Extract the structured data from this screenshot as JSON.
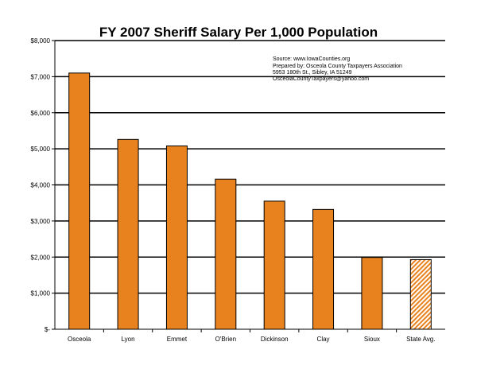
{
  "chart_data": {
    "type": "bar",
    "title": "FY 2007 Sheriff Salary Per 1,000 Population",
    "xlabel": "",
    "ylabel": "",
    "categories": [
      "Osceola",
      "Lyon",
      "Emmet",
      "O'Brien",
      "Dickinson",
      "Clay",
      "Sioux",
      "State Avg."
    ],
    "values": [
      7100,
      5260,
      5080,
      4160,
      3550,
      3320,
      1990,
      1930
    ],
    "y_tick_labels": [
      "$-",
      "$1,000",
      "$2,000",
      "$3,000",
      "$4,000",
      "$5,000",
      "$6,000",
      "$7,000",
      "$8,000"
    ],
    "ylim": [
      0,
      8000
    ],
    "grid": true,
    "colors": {
      "bar": "#E8821E",
      "bar_outline": "#000000",
      "highlight_hatch": "#E8821E",
      "gridline": "#000000"
    },
    "highlight_category": "State Avg.",
    "annotations": [
      "Source: www.IowaCounties.org",
      "Prepared by: Osceola County Taxpayers Association",
      "5953 180th St., Sibley, IA 51249",
      "OsceolaCountyTaxpayers@yahoo.com"
    ]
  }
}
